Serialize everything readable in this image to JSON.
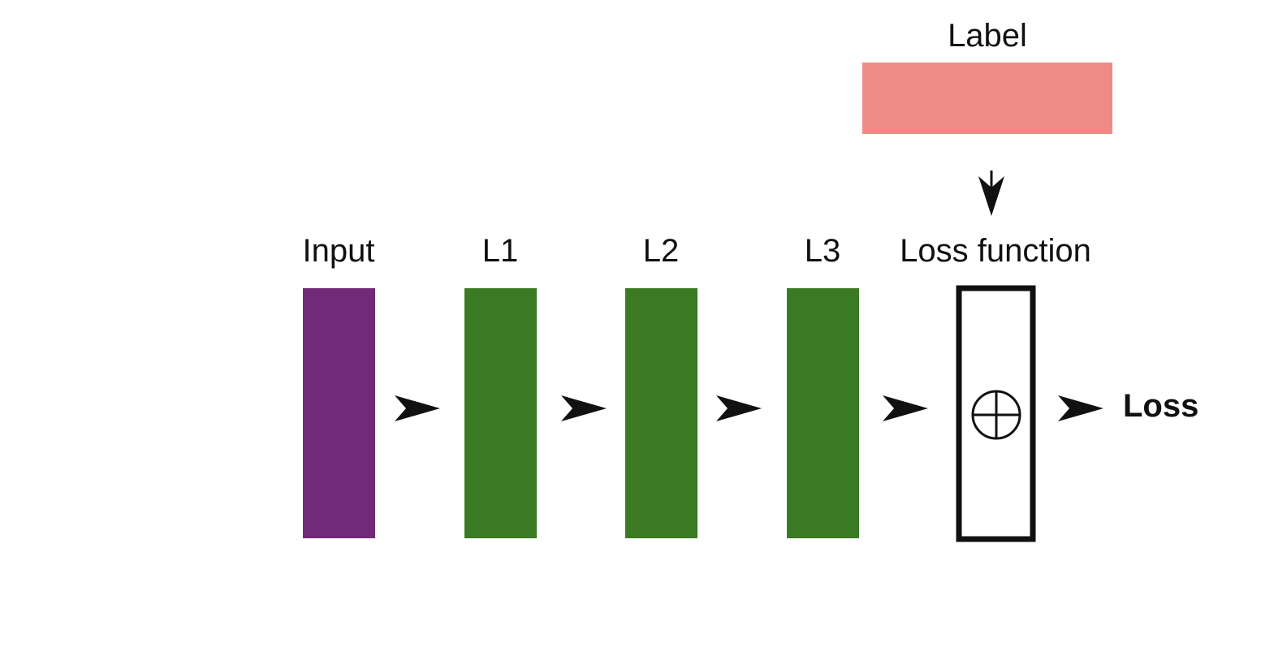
{
  "diagram": {
    "label_block": {
      "text": "Label",
      "color": "#f08a86"
    },
    "input_block": {
      "text": "Input",
      "color": "#722a78"
    },
    "layers": [
      {
        "text": "L1",
        "color": "#3a7a22"
      },
      {
        "text": "L2",
        "color": "#3a7a22"
      },
      {
        "text": "L3",
        "color": "#3a7a22"
      }
    ],
    "loss_function": {
      "text": "Loss function",
      "symbol": "⊕"
    },
    "output": {
      "text": "Loss"
    },
    "arrow_color": "#111111"
  }
}
